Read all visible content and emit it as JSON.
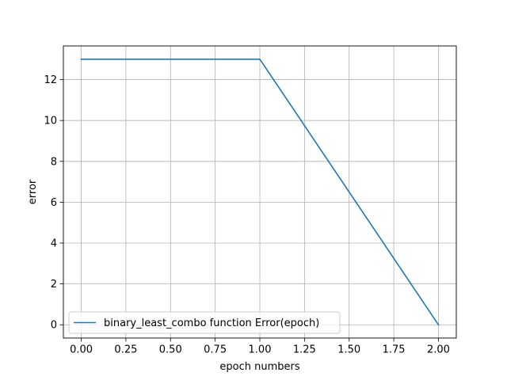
{
  "chart_data": {
    "type": "line",
    "title": "",
    "xlabel": "epoch numbers",
    "ylabel": "error",
    "xlim": [
      -0.1,
      2.1
    ],
    "ylim": [
      -0.65,
      13.65
    ],
    "xticks": [
      0.0,
      0.25,
      0.5,
      0.75,
      1.0,
      1.25,
      1.5,
      1.75,
      2.0
    ],
    "xtick_labels": [
      "0.00",
      "0.25",
      "0.50",
      "0.75",
      "1.00",
      "1.25",
      "1.50",
      "1.75",
      "2.00"
    ],
    "yticks": [
      0,
      2,
      4,
      6,
      8,
      10,
      12
    ],
    "ytick_labels": [
      "0",
      "2",
      "4",
      "6",
      "8",
      "10",
      "12"
    ],
    "grid": true,
    "legend_position": "lower-left",
    "series": [
      {
        "name": "binary_least_combo function Error(epoch)",
        "color": "#1f77b4",
        "x": [
          0,
          1,
          2
        ],
        "y": [
          13,
          13,
          0
        ]
      }
    ]
  }
}
